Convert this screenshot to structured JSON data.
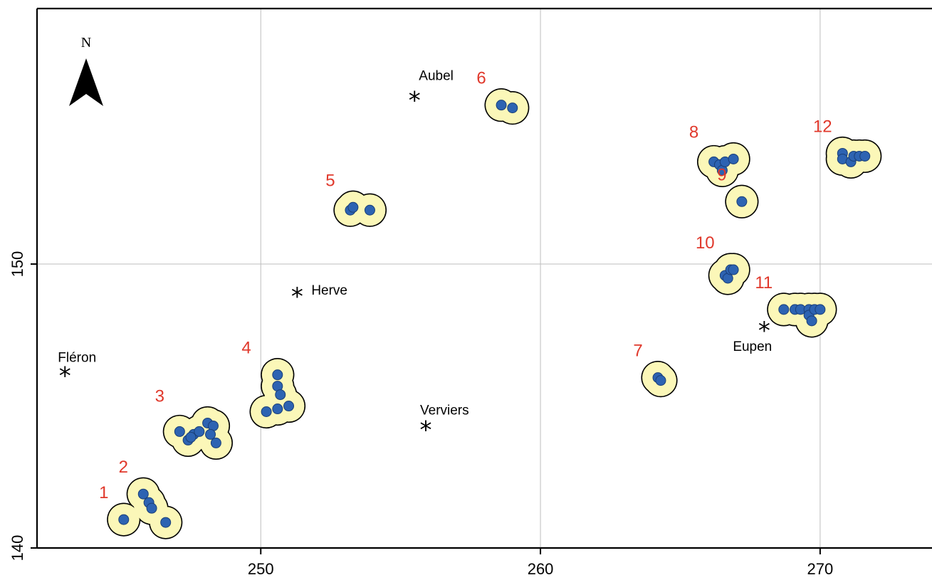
{
  "chart_data": {
    "type": "scatter",
    "x_range": [
      242,
      274
    ],
    "y_range": [
      140,
      159
    ],
    "x_ticks": [
      250,
      260,
      270
    ],
    "y_ticks": [
      140,
      150
    ],
    "x_tick_labels": [
      "250",
      "260",
      "270"
    ],
    "y_tick_labels": [
      "140",
      "150"
    ],
    "grid": true,
    "north_arrow_label": "N",
    "colors": {
      "point_fill": "#2d63b2",
      "point_stroke": "#1a3f78",
      "buffer_fill": "#fbf7b8",
      "buffer_stroke": "#000000",
      "cluster_label": "#e0382b"
    },
    "towns": [
      {
        "name": "Fléron",
        "x": 243.0,
        "y": 146.1
      },
      {
        "name": "Herve",
        "x": 251.3,
        "y": 148.9
      },
      {
        "name": "Aubel",
        "x": 255.5,
        "y": 155.8
      },
      {
        "name": "Verviers",
        "x": 255.9,
        "y": 144.2
      },
      {
        "name": "Eupen",
        "x": 268.0,
        "y": 147.7
      }
    ],
    "clusters": [
      {
        "label": "1",
        "points": [
          [
            245.1,
            141.0
          ]
        ]
      },
      {
        "label": "2",
        "points": [
          [
            245.8,
            141.9
          ],
          [
            246.0,
            141.6
          ],
          [
            246.1,
            141.4
          ],
          [
            246.6,
            140.9
          ]
        ]
      },
      {
        "label": "3",
        "points": [
          [
            247.1,
            144.1
          ],
          [
            247.4,
            143.8
          ],
          [
            247.6,
            144.0
          ],
          [
            247.8,
            144.1
          ],
          [
            248.1,
            144.4
          ],
          [
            248.3,
            144.3
          ],
          [
            248.2,
            144.0
          ],
          [
            248.4,
            143.7
          ],
          [
            247.5,
            143.9
          ]
        ]
      },
      {
        "label": "4",
        "points": [
          [
            250.6,
            146.1
          ],
          [
            250.6,
            145.7
          ],
          [
            250.7,
            145.4
          ],
          [
            250.2,
            144.8
          ],
          [
            250.6,
            144.9
          ],
          [
            251.0,
            145.0
          ]
        ]
      },
      {
        "label": "5",
        "points": [
          [
            253.2,
            151.9
          ],
          [
            253.3,
            152.0
          ],
          [
            253.9,
            151.9
          ]
        ]
      },
      {
        "label": "6",
        "points": [
          [
            258.6,
            155.6
          ],
          [
            259.0,
            155.5
          ]
        ]
      },
      {
        "label": "7",
        "points": [
          [
            264.2,
            146.0
          ],
          [
            264.3,
            145.9
          ]
        ]
      },
      {
        "label": "8",
        "points": [
          [
            266.2,
            153.6
          ],
          [
            266.4,
            153.5
          ],
          [
            266.5,
            153.3
          ],
          [
            266.6,
            153.6
          ],
          [
            266.9,
            153.7
          ]
        ]
      },
      {
        "label": "9",
        "points": [
          [
            267.2,
            152.2
          ]
        ]
      },
      {
        "label": "10",
        "points": [
          [
            266.6,
            149.6
          ],
          [
            266.7,
            149.5
          ],
          [
            266.8,
            149.8
          ],
          [
            266.9,
            149.8
          ]
        ]
      },
      {
        "label": "11",
        "points": [
          [
            268.7,
            148.4
          ],
          [
            269.1,
            148.4
          ],
          [
            269.3,
            148.4
          ],
          [
            269.6,
            148.4
          ],
          [
            269.6,
            148.2
          ],
          [
            269.7,
            148.0
          ],
          [
            269.8,
            148.4
          ],
          [
            270.0,
            148.4
          ]
        ]
      },
      {
        "label": "12",
        "points": [
          [
            270.8,
            153.9
          ],
          [
            270.8,
            153.7
          ],
          [
            271.1,
            153.6
          ],
          [
            271.2,
            153.8
          ],
          [
            271.4,
            153.8
          ],
          [
            271.6,
            153.8
          ]
        ]
      }
    ]
  }
}
